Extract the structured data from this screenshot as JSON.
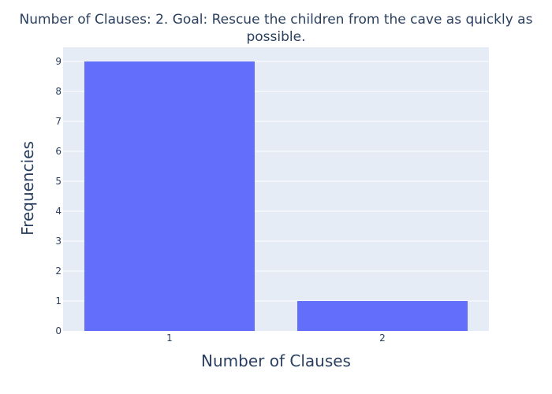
{
  "chart_data": {
    "type": "bar",
    "title": "Number of Clauses: 2. Goal: Rescue the children from the cave as quickly as possible.",
    "title_lines": [
      "Number of Clauses: 2. Goal: Rescue the children from the cave as quickly as",
      "possible."
    ],
    "xlabel": "Number of Clauses",
    "ylabel": "Frequencies",
    "categories": [
      "1",
      "2"
    ],
    "values": [
      9,
      1
    ],
    "ylim": [
      0,
      9.474
    ],
    "yticks": [
      "0",
      "1",
      "2",
      "3",
      "4",
      "5",
      "6",
      "7",
      "8",
      "9"
    ],
    "grid": true,
    "legend": "none",
    "colors": {
      "bar": "#636efa",
      "plot_background": "#e5ecf6",
      "grid": "#ffffff",
      "text": "#2a3f5f"
    }
  }
}
